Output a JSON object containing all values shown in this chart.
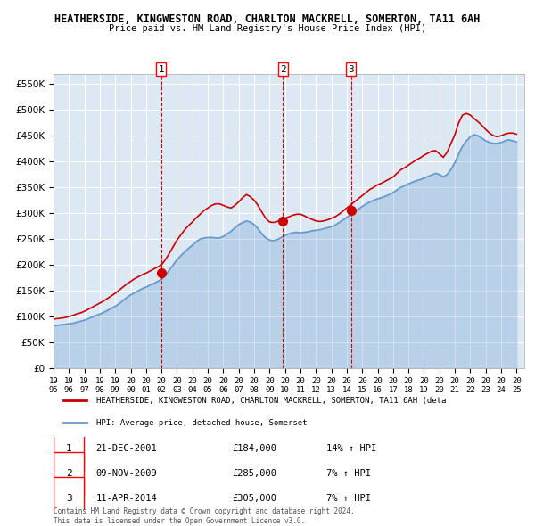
{
  "title": "HEATHERSIDE, KINGWESTON ROAD, CHARLTON MACKRELL, SOMERTON, TA11 6AH",
  "subtitle": "Price paid vs. HM Land Registry's House Price Index (HPI)",
  "ylim": [
    0,
    570000
  ],
  "yticks": [
    0,
    50000,
    100000,
    150000,
    200000,
    250000,
    300000,
    350000,
    400000,
    450000,
    500000,
    550000
  ],
  "xlim_start": 1995.0,
  "xlim_end": 2025.5,
  "bg_color": "#dce9f5",
  "plot_bg_color": "#dce9f5",
  "grid_color": "#ffffff",
  "red_line_color": "#cc0000",
  "blue_line_color": "#6699cc",
  "sale_marker_color": "#cc0000",
  "vline_color": "#cc0000",
  "legend_label_red": "HEATHERSIDE, KINGWESTON ROAD, CHARLTON MACKRELL, SOMERTON, TA11 6AH (deta",
  "legend_label_blue": "HPI: Average price, detached house, Somerset",
  "footer_text": "Contains HM Land Registry data © Crown copyright and database right 2024.\nThis data is licensed under the Open Government Licence v3.0.",
  "sales": [
    {
      "num": 1,
      "date": "21-DEC-2001",
      "price": 184000,
      "hpi_pct": "14%",
      "x": 2001.97
    },
    {
      "num": 2,
      "date": "09-NOV-2009",
      "price": 285000,
      "hpi_pct": "7%",
      "x": 2009.86
    },
    {
      "num": 3,
      "date": "11-APR-2014",
      "price": 305000,
      "hpi_pct": "7%",
      "x": 2014.28
    }
  ],
  "hpi_data_x": [
    1995.0,
    1995.25,
    1995.5,
    1995.75,
    1996.0,
    1996.25,
    1996.5,
    1996.75,
    1997.0,
    1997.25,
    1997.5,
    1997.75,
    1998.0,
    1998.25,
    1998.5,
    1998.75,
    1999.0,
    1999.25,
    1999.5,
    1999.75,
    2000.0,
    2000.25,
    2000.5,
    2000.75,
    2001.0,
    2001.25,
    2001.5,
    2001.75,
    2002.0,
    2002.25,
    2002.5,
    2002.75,
    2003.0,
    2003.25,
    2003.5,
    2003.75,
    2004.0,
    2004.25,
    2004.5,
    2004.75,
    2005.0,
    2005.25,
    2005.5,
    2005.75,
    2006.0,
    2006.25,
    2006.5,
    2006.75,
    2007.0,
    2007.25,
    2007.5,
    2007.75,
    2008.0,
    2008.25,
    2008.5,
    2008.75,
    2009.0,
    2009.25,
    2009.5,
    2009.75,
    2010.0,
    2010.25,
    2010.5,
    2010.75,
    2011.0,
    2011.25,
    2011.5,
    2011.75,
    2012.0,
    2012.25,
    2012.5,
    2012.75,
    2013.0,
    2013.25,
    2013.5,
    2013.75,
    2014.0,
    2014.25,
    2014.5,
    2014.75,
    2015.0,
    2015.25,
    2015.5,
    2015.75,
    2016.0,
    2016.25,
    2016.5,
    2016.75,
    2017.0,
    2017.25,
    2017.5,
    2017.75,
    2018.0,
    2018.25,
    2018.5,
    2018.75,
    2019.0,
    2019.25,
    2019.5,
    2019.75,
    2020.0,
    2020.25,
    2020.5,
    2020.75,
    2021.0,
    2021.25,
    2021.5,
    2021.75,
    2022.0,
    2022.25,
    2022.5,
    2022.75,
    2023.0,
    2023.25,
    2023.5,
    2023.75,
    2024.0,
    2024.25,
    2024.5,
    2024.75,
    2025.0
  ],
  "hpi_data_y": [
    82000,
    83000,
    84000,
    85000,
    86000,
    87000,
    89000,
    91000,
    93000,
    96000,
    99000,
    102000,
    105000,
    108000,
    112000,
    116000,
    120000,
    125000,
    131000,
    137000,
    142000,
    146000,
    150000,
    154000,
    157000,
    161000,
    164000,
    168000,
    172000,
    180000,
    190000,
    200000,
    210000,
    218000,
    225000,
    232000,
    238000,
    245000,
    250000,
    252000,
    253000,
    253000,
    252000,
    252000,
    255000,
    260000,
    265000,
    272000,
    278000,
    282000,
    285000,
    283000,
    278000,
    270000,
    260000,
    252000,
    248000,
    247000,
    249000,
    253000,
    257000,
    260000,
    262000,
    263000,
    262000,
    263000,
    264000,
    266000,
    267000,
    268000,
    270000,
    272000,
    274000,
    277000,
    282000,
    287000,
    292000,
    297000,
    303000,
    308000,
    313000,
    318000,
    322000,
    325000,
    328000,
    330000,
    333000,
    336000,
    340000,
    345000,
    350000,
    353000,
    357000,
    360000,
    363000,
    365000,
    368000,
    371000,
    374000,
    377000,
    375000,
    370000,
    375000,
    385000,
    398000,
    415000,
    430000,
    440000,
    448000,
    452000,
    450000,
    445000,
    440000,
    437000,
    435000,
    435000,
    437000,
    440000,
    442000,
    440000,
    438000
  ],
  "red_data_x": [
    1995.0,
    1995.25,
    1995.5,
    1995.75,
    1996.0,
    1996.25,
    1996.5,
    1996.75,
    1997.0,
    1997.25,
    1997.5,
    1997.75,
    1998.0,
    1998.25,
    1998.5,
    1998.75,
    1999.0,
    1999.25,
    1999.5,
    1999.75,
    2000.0,
    2000.25,
    2000.5,
    2000.75,
    2001.0,
    2001.25,
    2001.5,
    2001.75,
    2002.0,
    2002.25,
    2002.5,
    2002.75,
    2003.0,
    2003.25,
    2003.5,
    2003.75,
    2004.0,
    2004.25,
    2004.5,
    2004.75,
    2005.0,
    2005.25,
    2005.5,
    2005.75,
    2006.0,
    2006.25,
    2006.5,
    2006.75,
    2007.0,
    2007.25,
    2007.5,
    2007.75,
    2008.0,
    2008.25,
    2008.5,
    2008.75,
    2009.0,
    2009.25,
    2009.5,
    2009.75,
    2010.0,
    2010.25,
    2010.5,
    2010.75,
    2011.0,
    2011.25,
    2011.5,
    2011.75,
    2012.0,
    2012.25,
    2012.5,
    2012.75,
    2013.0,
    2013.25,
    2013.5,
    2013.75,
    2014.0,
    2014.25,
    2014.5,
    2014.75,
    2015.0,
    2015.25,
    2015.5,
    2015.75,
    2016.0,
    2016.25,
    2016.5,
    2016.75,
    2017.0,
    2017.25,
    2017.5,
    2017.75,
    2018.0,
    2018.25,
    2018.5,
    2018.75,
    2019.0,
    2019.25,
    2019.5,
    2019.75,
    2020.0,
    2020.25,
    2020.5,
    2020.75,
    2021.0,
    2021.25,
    2021.5,
    2021.75,
    2022.0,
    2022.25,
    2022.5,
    2022.75,
    2023.0,
    2023.25,
    2023.5,
    2023.75,
    2024.0,
    2024.25,
    2024.5,
    2024.75,
    2025.0
  ],
  "red_data_y": [
    95000,
    96000,
    97000,
    98000,
    100000,
    102000,
    105000,
    107000,
    110000,
    114000,
    118000,
    122000,
    126000,
    130000,
    135000,
    140000,
    145000,
    151000,
    157000,
    163000,
    168000,
    173000,
    177000,
    181000,
    184000,
    188000,
    192000,
    196000,
    200000,
    210000,
    222000,
    235000,
    248000,
    258000,
    268000,
    276000,
    283000,
    291000,
    298000,
    305000,
    310000,
    315000,
    318000,
    318000,
    315000,
    312000,
    310000,
    315000,
    322000,
    330000,
    336000,
    332000,
    325000,
    315000,
    302000,
    290000,
    283000,
    282000,
    284000,
    287000,
    290000,
    293000,
    296000,
    298000,
    298000,
    295000,
    291000,
    288000,
    285000,
    284000,
    285000,
    287000,
    290000,
    293000,
    298000,
    304000,
    310000,
    316000,
    322000,
    328000,
    334000,
    340000,
    346000,
    350000,
    355000,
    358000,
    362000,
    366000,
    370000,
    377000,
    384000,
    388000,
    393000,
    398000,
    403000,
    407000,
    412000,
    416000,
    420000,
    421000,
    415000,
    408000,
    418000,
    435000,
    452000,
    475000,
    490000,
    493000,
    490000,
    483000,
    477000,
    470000,
    462000,
    455000,
    450000,
    448000,
    450000,
    453000,
    455000,
    455000,
    453000
  ]
}
